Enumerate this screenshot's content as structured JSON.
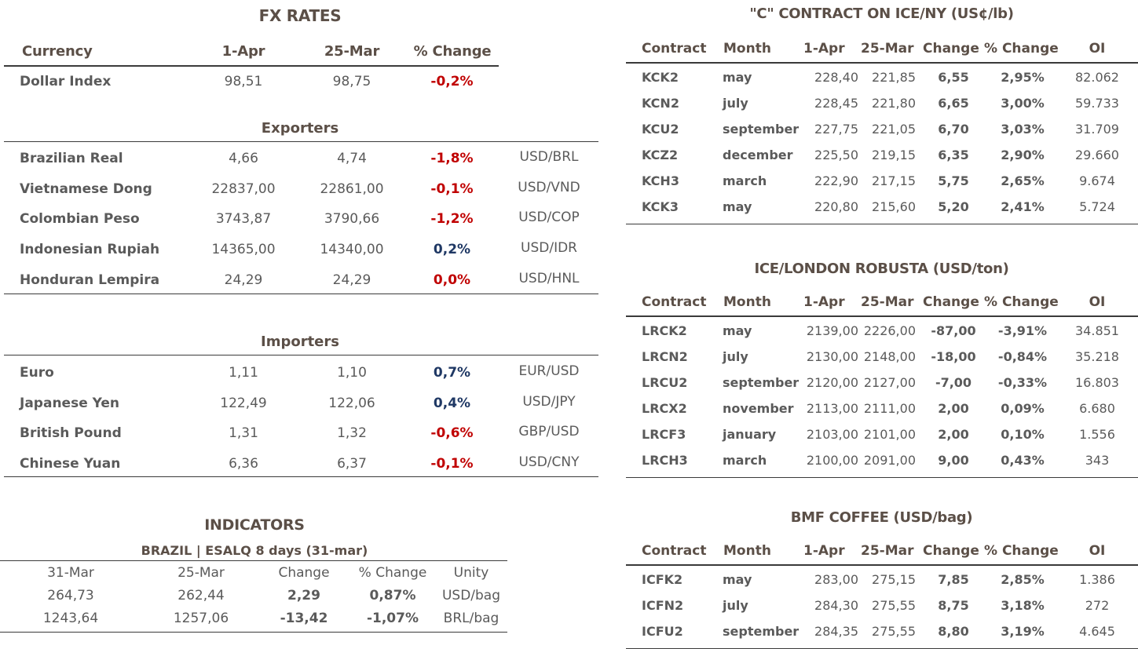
{
  "fx": {
    "title": "FX RATES",
    "headers": [
      "Currency",
      "1-Apr",
      "25-Mar",
      "% Change"
    ],
    "dollar_index": {
      "name": "Dollar Index",
      "apr": "98,51",
      "mar": "98,75",
      "chg": "-0,2%"
    },
    "exporters_title": "Exporters",
    "exporters": [
      {
        "name": "Brazilian Real",
        "apr": "4,66",
        "mar": "4,74",
        "chg": "-1,8%",
        "pair": "USD/BRL"
      },
      {
        "name": "Vietnamese Dong",
        "apr": "22837,00",
        "mar": "22861,00",
        "chg": "-0,1%",
        "pair": "USD/VND"
      },
      {
        "name": "Colombian Peso",
        "apr": "3743,87",
        "mar": "3790,66",
        "chg": "-1,2%",
        "pair": "USD/COP"
      },
      {
        "name": "Indonesian Rupiah",
        "apr": "14365,00",
        "mar": "14340,00",
        "chg": "0,2%",
        "pair": "USD/IDR"
      },
      {
        "name": "Honduran Lempira",
        "apr": "24,29",
        "mar": "24,29",
        "chg": "0,0%",
        "pair": "USD/HNL"
      }
    ],
    "importers_title": "Importers",
    "importers": [
      {
        "name": "Euro",
        "apr": "1,11",
        "mar": "1,10",
        "chg": "0,7%",
        "pair": "EUR/USD"
      },
      {
        "name": "Japanese Yen",
        "apr": "122,49",
        "mar": "122,06",
        "chg": "0,4%",
        "pair": "USD/JPY"
      },
      {
        "name": "British Pound",
        "apr": "1,31",
        "mar": "1,32",
        "chg": "-0,6%",
        "pair": "GBP/USD"
      },
      {
        "name": "Chinese Yuan",
        "apr": "6,36",
        "mar": "6,37",
        "chg": "-0,1%",
        "pair": "USD/CNY"
      }
    ]
  },
  "indicators": {
    "title": "INDICATORS",
    "subtitle": "BRAZIL | ESALQ 8 days (31-mar)",
    "headers": [
      "31-Mar",
      "25-Mar",
      "Change",
      "% Change",
      "Unity"
    ],
    "rows": [
      {
        "a": "264,73",
        "b": "262,44",
        "chg": "2,29",
        "pct": "0,87%",
        "unit": "USD/bag"
      },
      {
        "a": "1243,64",
        "b": "1257,06",
        "chg": "-13,42",
        "pct": "-1,07%",
        "unit": "BRL/bag"
      }
    ]
  },
  "ice_ny": {
    "title": "\"C\" CONTRACT ON ICE/NY (US¢/lb)",
    "headers": [
      "Contract",
      "Month",
      "1-Apr",
      "25-Mar",
      "Change",
      "% Change",
      "OI"
    ],
    "rows": [
      {
        "k": "KCK2",
        "m": "may",
        "a": "228,40",
        "b": "221,85",
        "c": "6,55",
        "p": "2,95%",
        "oi": "82.062"
      },
      {
        "k": "KCN2",
        "m": "july",
        "a": "228,45",
        "b": "221,80",
        "c": "6,65",
        "p": "3,00%",
        "oi": "59.733"
      },
      {
        "k": "KCU2",
        "m": "september",
        "a": "227,75",
        "b": "221,05",
        "c": "6,70",
        "p": "3,03%",
        "oi": "31.709"
      },
      {
        "k": "KCZ2",
        "m": "december",
        "a": "225,50",
        "b": "219,15",
        "c": "6,35",
        "p": "2,90%",
        "oi": "29.660"
      },
      {
        "k": "KCH3",
        "m": "march",
        "a": "222,90",
        "b": "217,15",
        "c": "5,75",
        "p": "2,65%",
        "oi": "9.674"
      },
      {
        "k": "KCK3",
        "m": "may",
        "a": "220,80",
        "b": "215,60",
        "c": "5,20",
        "p": "2,41%",
        "oi": "5.724"
      }
    ]
  },
  "ice_london": {
    "title": "ICE/LONDON ROBUSTA (USD/ton)",
    "headers": [
      "Contract",
      "Month",
      "1-Apr",
      "25-Mar",
      "Change",
      "% Change",
      "OI"
    ],
    "rows": [
      {
        "k": "LRCK2",
        "m": "may",
        "a": "2139,00",
        "b": "2226,00",
        "c": "-87,00",
        "p": "-3,91%",
        "oi": "34.851"
      },
      {
        "k": "LRCN2",
        "m": "july",
        "a": "2130,00",
        "b": "2148,00",
        "c": "-18,00",
        "p": "-0,84%",
        "oi": "35.218"
      },
      {
        "k": "LRCU2",
        "m": "september",
        "a": "2120,00",
        "b": "2127,00",
        "c": "-7,00",
        "p": "-0,33%",
        "oi": "16.803"
      },
      {
        "k": "LRCX2",
        "m": "november",
        "a": "2113,00",
        "b": "2111,00",
        "c": "2,00",
        "p": "0,09%",
        "oi": "6.680"
      },
      {
        "k": "LRCF3",
        "m": "january",
        "a": "2103,00",
        "b": "2101,00",
        "c": "2,00",
        "p": "0,10%",
        "oi": "1.556"
      },
      {
        "k": "LRCH3",
        "m": "march",
        "a": "2100,00",
        "b": "2091,00",
        "c": "9,00",
        "p": "0,43%",
        "oi": "343"
      }
    ]
  },
  "bmf": {
    "title": "BMF COFFEE (USD/bag)",
    "headers": [
      "Contract",
      "Month",
      "1-Apr",
      "25-Mar",
      "Change",
      "% Change",
      "OI"
    ],
    "rows": [
      {
        "k": "ICFK2",
        "m": "may",
        "a": "283,00",
        "b": "275,15",
        "c": "7,85",
        "p": "2,85%",
        "oi": "1.386"
      },
      {
        "k": "ICFN2",
        "m": "july",
        "a": "284,30",
        "b": "275,55",
        "c": "8,75",
        "p": "3,18%",
        "oi": "272"
      },
      {
        "k": "ICFU2",
        "m": "september",
        "a": "284,35",
        "b": "275,55",
        "c": "8,80",
        "p": "3,19%",
        "oi": "4.645"
      }
    ]
  },
  "colors": {
    "positive": "#1f3864",
    "negative": "#c00000",
    "heading": "#5b4f47",
    "text": "#5a5a5a"
  }
}
